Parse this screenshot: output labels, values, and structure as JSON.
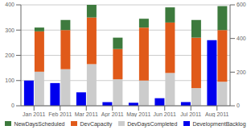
{
  "chart_data": {
    "type": "bar",
    "stacked": true,
    "categories": [
      "Jan 2011",
      "Feb 2011",
      "Mar 2011",
      "Apr 2011",
      "May 2011",
      "Jun 2011",
      "Jul 2011",
      "Aug 2011"
    ],
    "series": [
      {
        "name": "NewDaysScheduled",
        "color": "#3d7a3d",
        "values": [
          15,
          40,
          50,
          45,
          35,
          60,
          70,
          95
        ]
      },
      {
        "name": "DevCapacity",
        "color": "#e05a1a",
        "values": [
          160,
          155,
          185,
          120,
          210,
          200,
          200,
          205
        ]
      },
      {
        "name": "DevDaysCompleted",
        "color": "#cccccc",
        "values": [
          135,
          145,
          165,
          105,
          100,
          130,
          70,
          95
        ]
      },
      {
        "name": "DevelopmentBacklog",
        "color": "#0000ee",
        "values": [
          150,
          135,
          80,
          22,
          18,
          45,
          22,
          390
        ],
        "axis": "y2"
      }
    ],
    "ylim": [
      0,
      400
    ],
    "yticks": [
      0,
      100,
      200,
      300,
      400
    ],
    "y2lim": [
      0,
      600
    ],
    "y2ticks": [
      0,
      200,
      400,
      600
    ],
    "grid": true,
    "legend": "bottom"
  }
}
